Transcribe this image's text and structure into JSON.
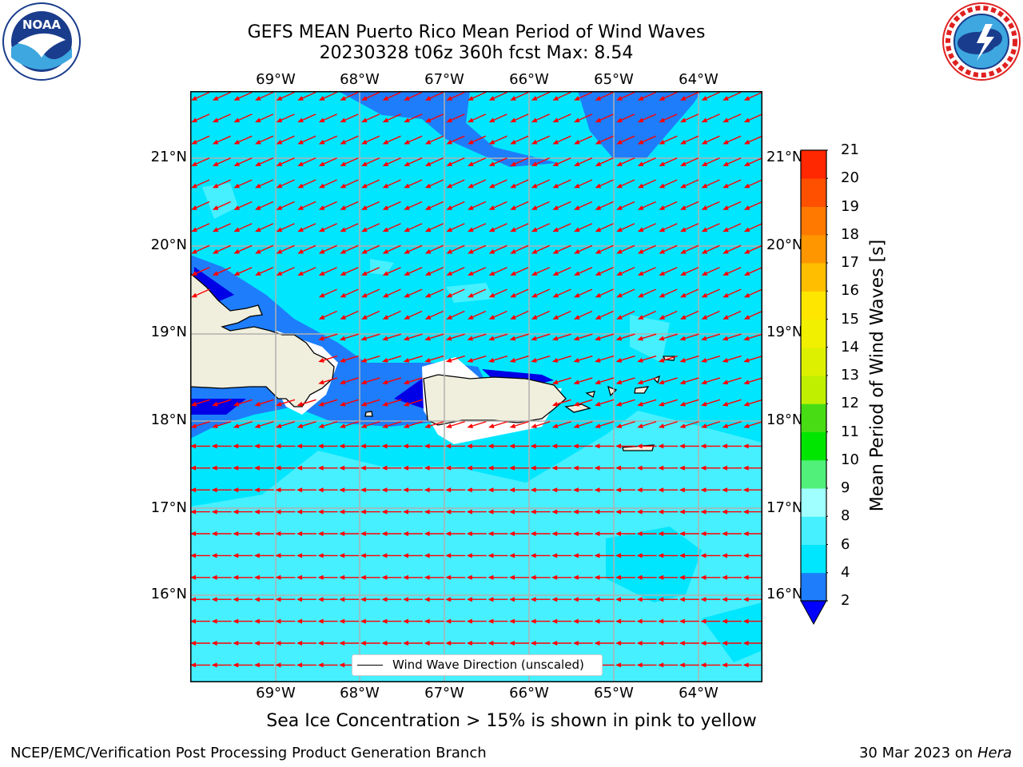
{
  "title_line1": "GEFS MEAN Puerto Rico Mean Period of Wind Waves",
  "title_line2": "20230328 t06z 360h fcst   Max: 8.54",
  "logos": {
    "left": "noaa-logo",
    "right": "national-weather-service-logo"
  },
  "lon_labels": [
    "69°W",
    "68°W",
    "67°W",
    "66°W",
    "65°W",
    "64°W"
  ],
  "lat_labels": [
    "21°N",
    "20°N",
    "19°N",
    "18°N",
    "17°N",
    "16°N"
  ],
  "colorbar": {
    "title": "Mean Period of Wind Waves [s]",
    "ticks": [
      "21",
      "20",
      "19",
      "18",
      "17",
      "16",
      "15",
      "14",
      "13",
      "12",
      "11",
      "10",
      "9",
      "8",
      "6",
      "4",
      "2"
    ],
    "bins": [
      {
        "from": 2,
        "to": 4,
        "color": "#1e7dfa"
      },
      {
        "from": 4,
        "to": 6,
        "color": "#00e6ff"
      },
      {
        "from": 6,
        "to": 8,
        "color": "#46f0ff"
      },
      {
        "from": 8,
        "to": 9,
        "color": "#a0ffff"
      },
      {
        "from": 9,
        "to": 10,
        "color": "#50f07a"
      },
      {
        "from": 10,
        "to": 11,
        "color": "#00e600"
      },
      {
        "from": 11,
        "to": 12,
        "color": "#48dc14"
      },
      {
        "from": 12,
        "to": 13,
        "color": "#c0f000"
      },
      {
        "from": 13,
        "to": 14,
        "color": "#dcf000"
      },
      {
        "from": 14,
        "to": 15,
        "color": "#f0f000"
      },
      {
        "from": 15,
        "to": 16,
        "color": "#ffe600"
      },
      {
        "from": 16,
        "to": 17,
        "color": "#ffbe00"
      },
      {
        "from": 17,
        "to": 18,
        "color": "#ff9600"
      },
      {
        "from": 18,
        "to": 19,
        "color": "#ff7800"
      },
      {
        "from": 19,
        "to": 20,
        "color": "#ff5000"
      },
      {
        "from": 20,
        "to": 21,
        "color": "#ff2800"
      }
    ],
    "under_color": "#0000ff"
  },
  "colors": {
    "ocean_base": "#00e6ff",
    "ocean_light": "#46f0ff",
    "ocean_mid": "#1e7dfa",
    "ocean_deep": "#0000e6",
    "land": "#f0eedd",
    "arrow": "#ff0000",
    "grid": "#b0b0b0"
  },
  "legend_label": "Wind Wave Direction (unscaled)",
  "subnote": "Sea Ice Concentration > 15% is shown in pink to yellow",
  "footer_left": "NCEP/EMC/Verification Post Processing Product Generation Branch",
  "footer_date": "30 Mar 2023 on ",
  "footer_machine": "Hera"
}
